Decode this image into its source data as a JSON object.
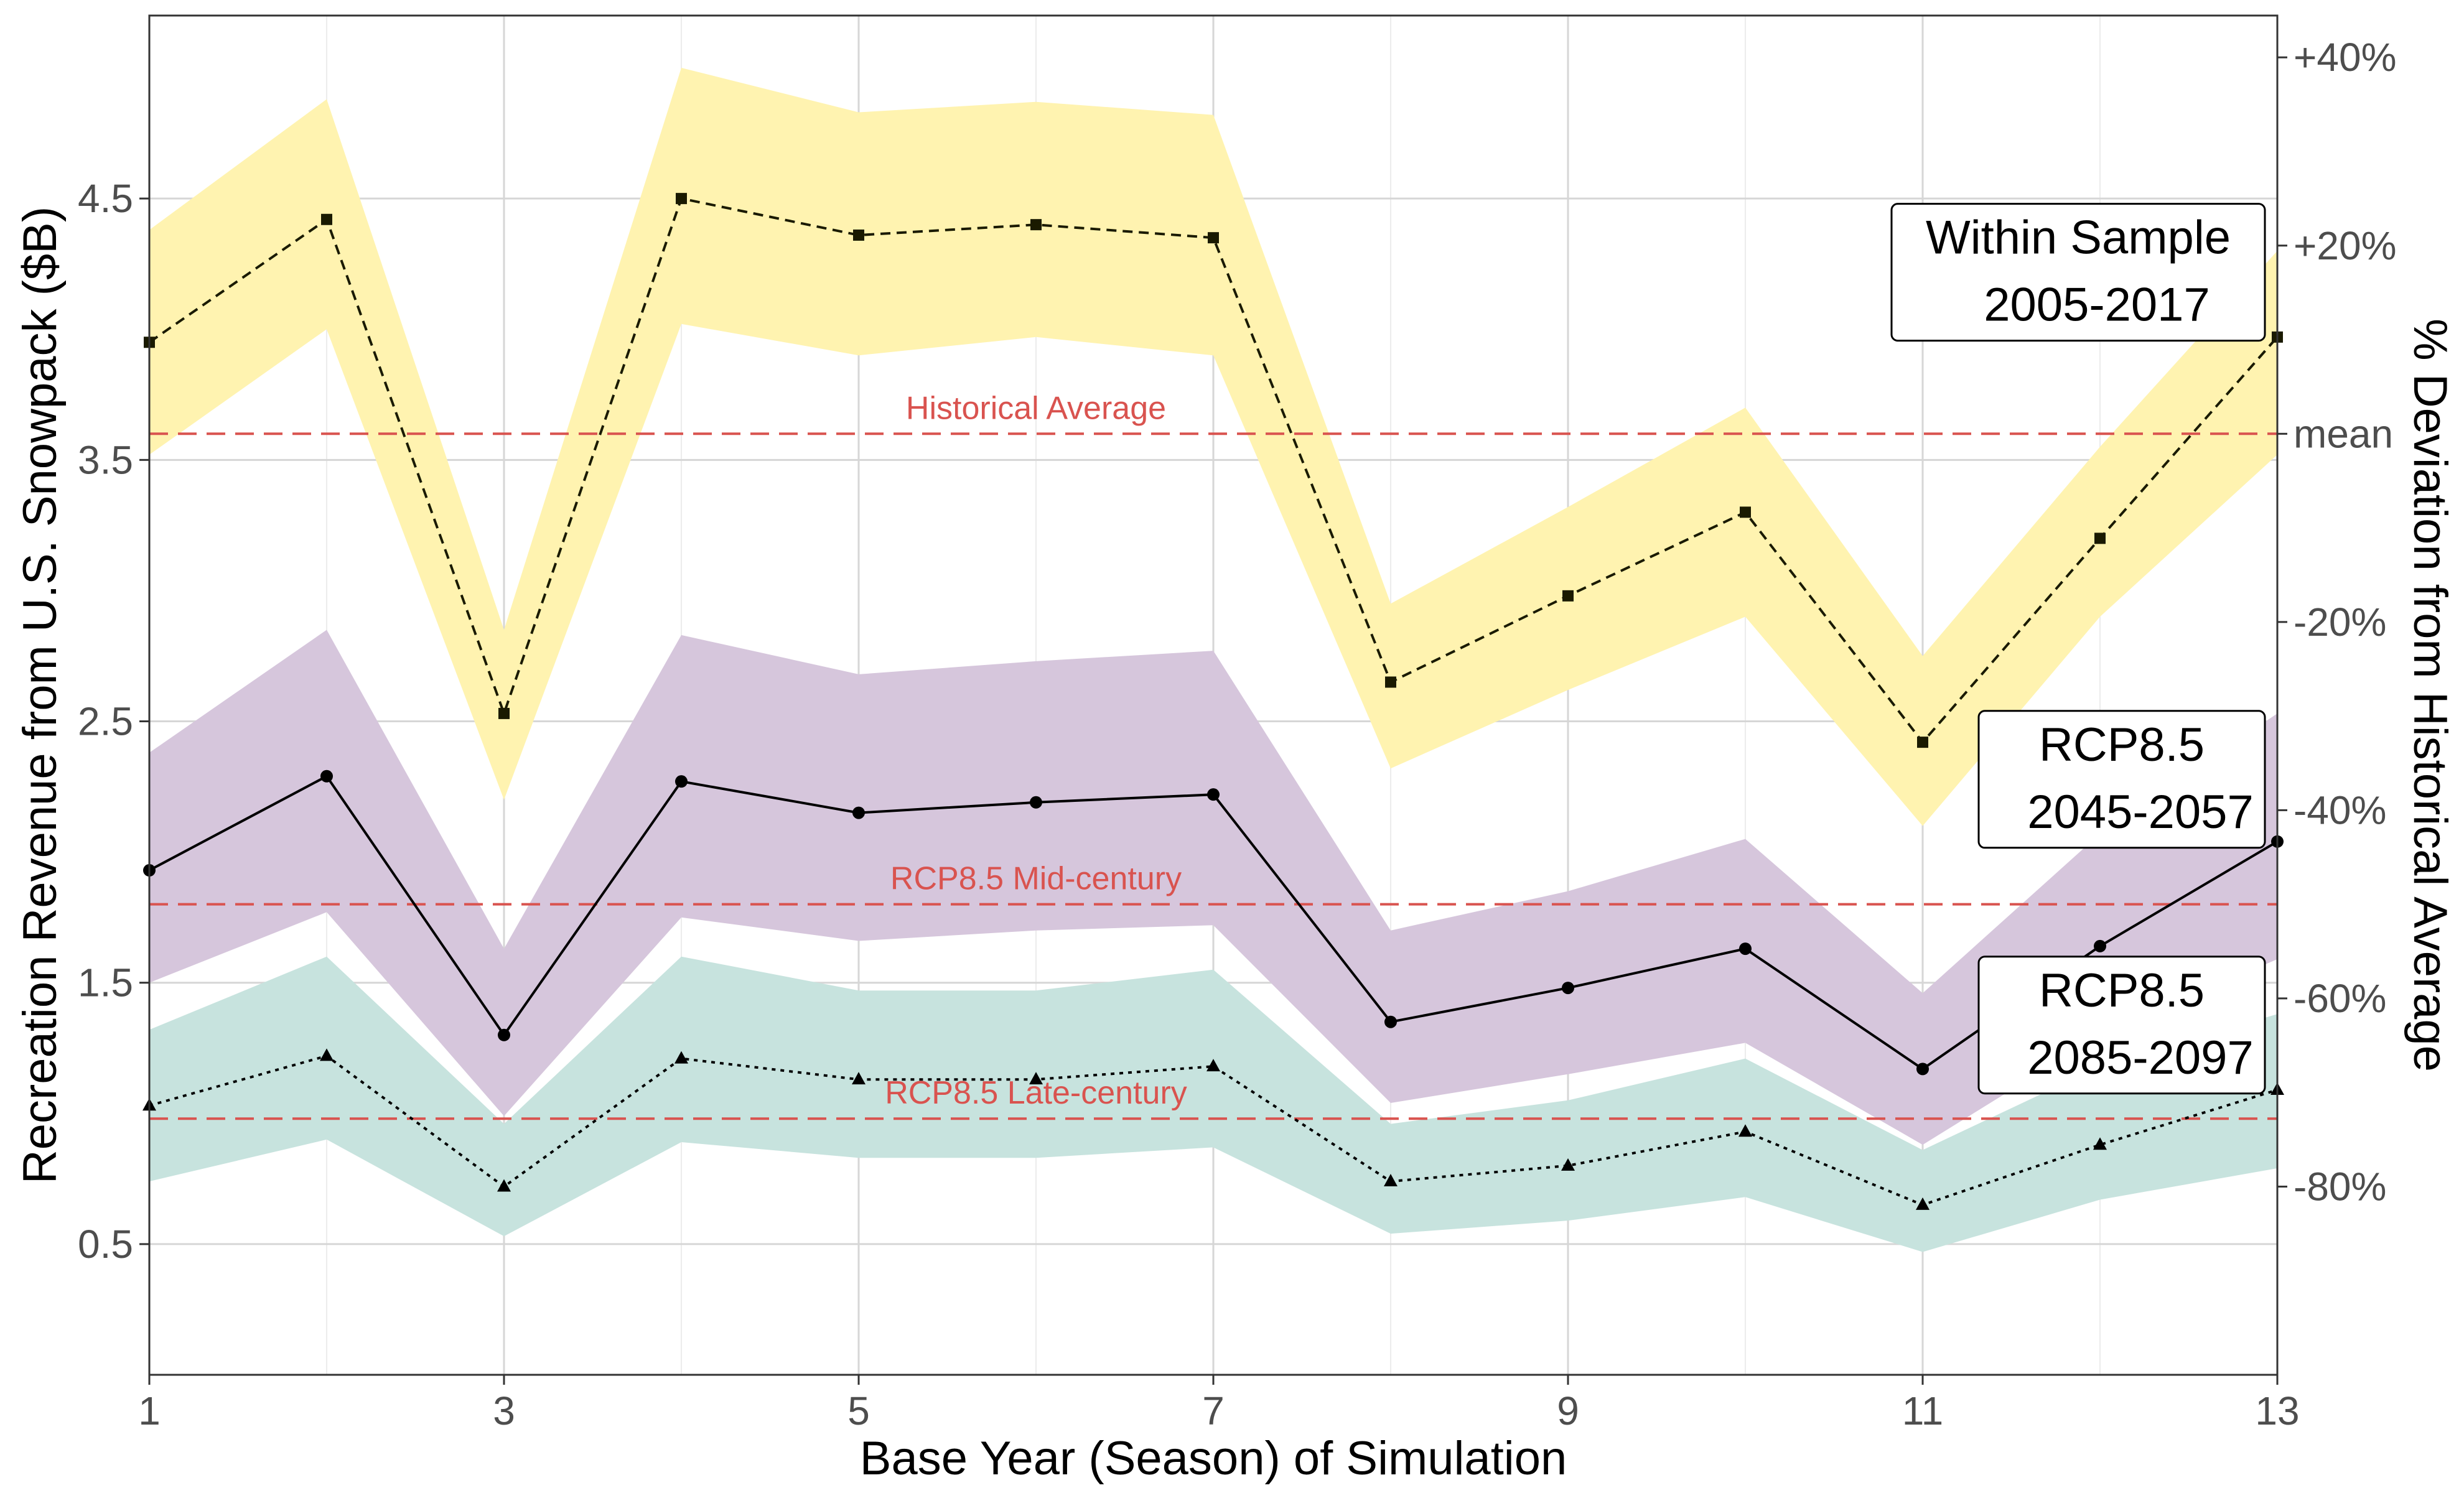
{
  "chart_data": {
    "type": "line",
    "title": "",
    "xlabel": "Base Year (Season) of Simulation",
    "ylabel": "Recreation Revenue from U.S. Snowpack ($B)",
    "y2label": "% Deviation from Historical Average",
    "xlim": [
      1,
      13
    ],
    "ylim": [
      0,
      5.2
    ],
    "x_ticks": [
      1,
      3,
      5,
      7,
      9,
      11,
      13
    ],
    "y_ticks": [
      0.5,
      1.5,
      2.5,
      3.5,
      4.5
    ],
    "y_tick_labels": [
      "0.5",
      "1.5",
      "2.5",
      "3.5",
      "4.5"
    ],
    "y2_ticks": [
      {
        "label": "+40%",
        "value": 5.04
      },
      {
        "label": "+20%",
        "value": 4.32
      },
      {
        "label": "mean",
        "value": 3.6
      },
      {
        "label": "-20%",
        "value": 2.88
      },
      {
        "label": "-40%",
        "value": 2.16
      },
      {
        "label": "-60%",
        "value": 1.44
      },
      {
        "label": "-80%",
        "value": 0.72
      }
    ],
    "grid": true,
    "x": [
      1,
      2,
      3,
      4,
      5,
      6,
      7,
      8,
      9,
      10,
      11,
      12,
      13
    ],
    "series": [
      {
        "name": "Within Sample 2005-2017",
        "color": "#1a1a00",
        "band_color": "#fff3b0",
        "line_style": "dashed",
        "marker": "square",
        "values": [
          3.95,
          4.42,
          2.53,
          4.5,
          4.36,
          4.4,
          4.35,
          2.65,
          2.98,
          3.3,
          2.42,
          3.2,
          3.97
        ],
        "lower": [
          3.52,
          4.0,
          2.2,
          4.02,
          3.9,
          3.97,
          3.9,
          2.32,
          2.62,
          2.9,
          2.1,
          2.9,
          3.52
        ],
        "upper": [
          4.38,
          4.88,
          2.85,
          5.0,
          4.83,
          4.87,
          4.82,
          2.95,
          3.32,
          3.7,
          2.75,
          3.55,
          4.3
        ]
      },
      {
        "name": "RCP8.5 2045-2057",
        "color": "#000000",
        "band_color": "#d6c6dc",
        "line_style": "solid",
        "marker": "circle",
        "values": [
          1.93,
          2.29,
          1.3,
          2.27,
          2.15,
          2.19,
          2.22,
          1.35,
          1.48,
          1.63,
          1.17,
          1.64,
          2.04
        ],
        "lower": [
          1.5,
          1.77,
          0.99,
          1.75,
          1.66,
          1.7,
          1.72,
          1.04,
          1.15,
          1.27,
          0.88,
          1.3,
          1.59
        ],
        "upper": [
          2.38,
          2.85,
          1.63,
          2.83,
          2.68,
          2.73,
          2.77,
          1.7,
          1.85,
          2.05,
          1.46,
          2.07,
          2.53
        ]
      },
      {
        "name": "RCP8.5 2085-2097",
        "color": "#000000",
        "band_color": "#c7e3de",
        "line_style": "dotted",
        "marker": "triangle",
        "values": [
          1.03,
          1.22,
          0.72,
          1.21,
          1.13,
          1.13,
          1.18,
          0.74,
          0.8,
          0.93,
          0.65,
          0.88,
          1.09
        ],
        "lower": [
          0.74,
          0.9,
          0.53,
          0.89,
          0.83,
          0.83,
          0.87,
          0.54,
          0.59,
          0.68,
          0.47,
          0.67,
          0.79
        ],
        "upper": [
          1.32,
          1.6,
          0.96,
          1.6,
          1.47,
          1.47,
          1.55,
          0.96,
          1.05,
          1.21,
          0.86,
          1.18,
          1.38
        ]
      }
    ],
    "reference_lines": [
      {
        "label": "Historical Average",
        "y": 3.6,
        "color": "#d9534f",
        "label_x": 6.0
      },
      {
        "label": "RCP8.5 Mid-century",
        "y": 1.8,
        "color": "#d9534f",
        "label_x": 6.0
      },
      {
        "label": "RCP8.5 Late-century",
        "y": 0.98,
        "color": "#d9534f",
        "label_x": 6.0
      }
    ],
    "box_labels": [
      {
        "lines": [
          "Within Sample",
          "2005-2017"
        ],
        "anchor_y": 3.98
      },
      {
        "lines": [
          "RCP8.5",
          "2045-2057"
        ],
        "anchor_y": 2.04
      },
      {
        "lines": [
          "RCP8.5",
          "2085-2097"
        ],
        "anchor_y": 1.1
      }
    ]
  }
}
